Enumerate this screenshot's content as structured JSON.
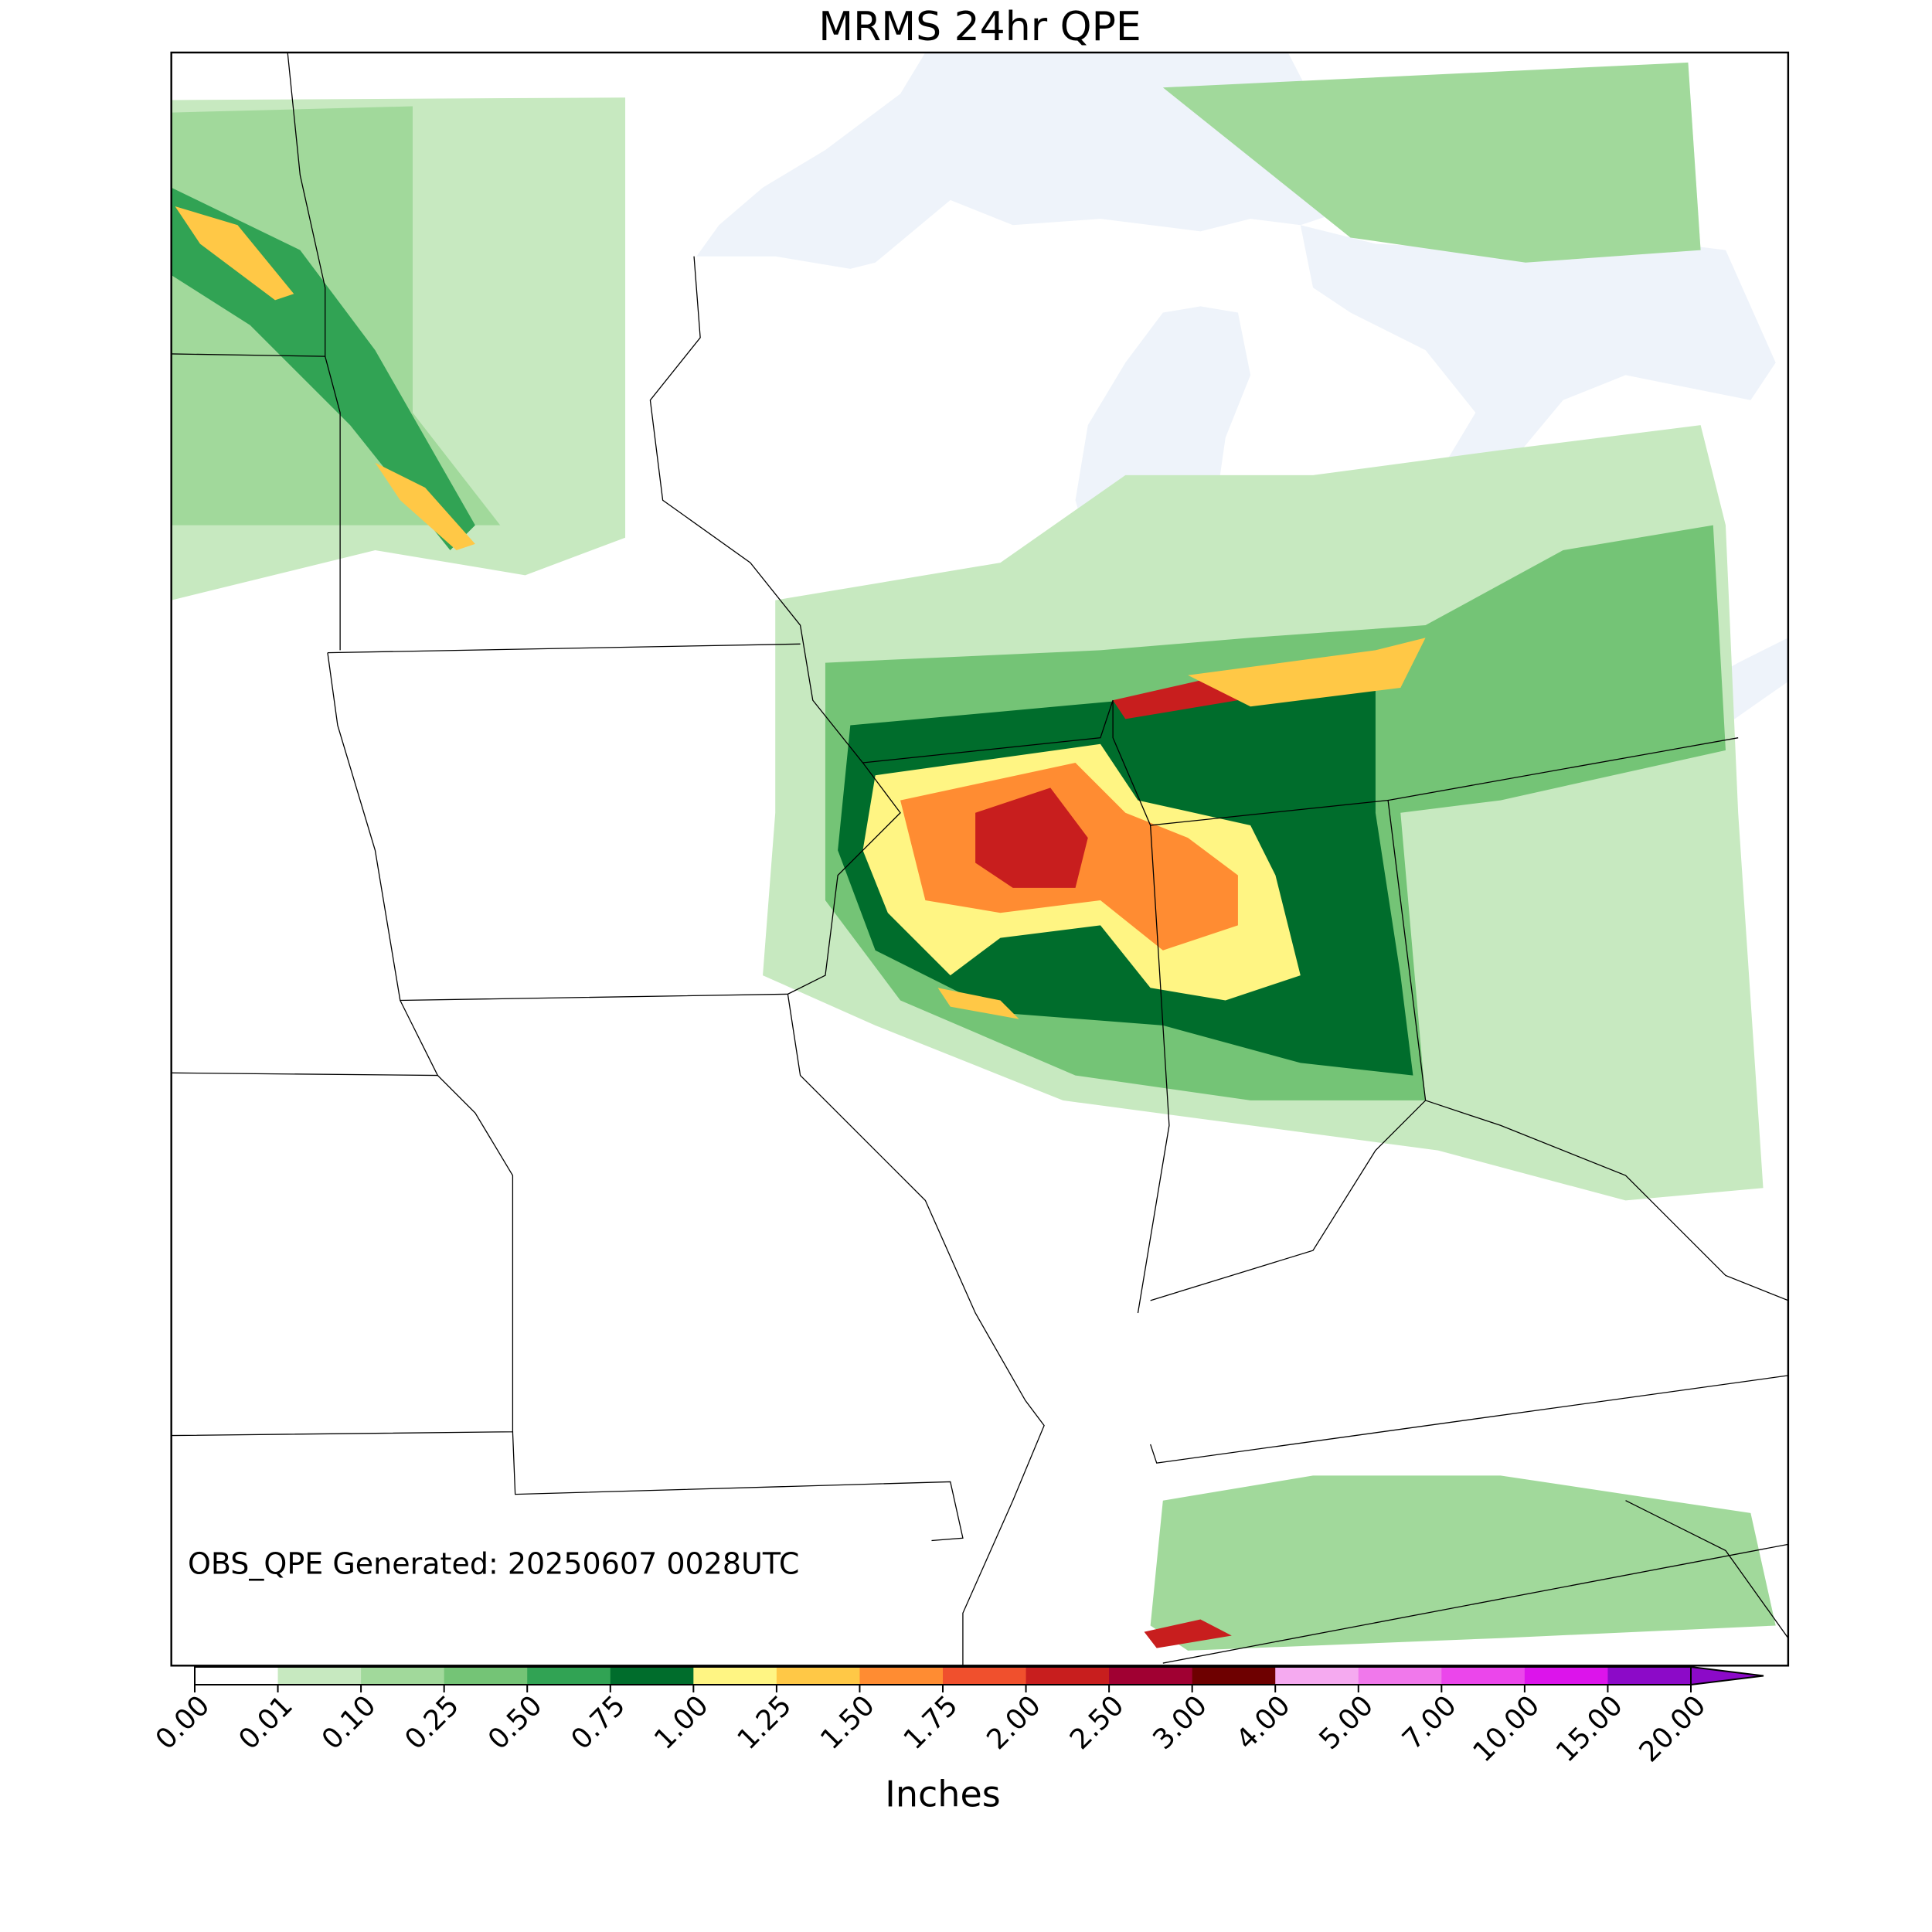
{
  "title": "MRMS 24hr QPE",
  "annotation": "OBS_QPE Generated: 20250607 0028UTC",
  "colorbar": {
    "label": "Inches",
    "ticks": [
      {
        "value": 0,
        "label": "0.00"
      },
      {
        "value": 0.01,
        "label": "0.01"
      },
      {
        "value": 0.1,
        "label": "0.10"
      },
      {
        "value": 0.25,
        "label": "0.25"
      },
      {
        "value": 0.5,
        "label": "0.50"
      },
      {
        "value": 0.75,
        "label": "0.75"
      },
      {
        "value": 1,
        "label": "1.00"
      },
      {
        "value": 1.25,
        "label": "1.25"
      },
      {
        "value": 1.5,
        "label": "1.50"
      },
      {
        "value": 1.75,
        "label": "1.75"
      },
      {
        "value": 2,
        "label": "2.00"
      },
      {
        "value": 2.5,
        "label": "2.50"
      },
      {
        "value": 3,
        "label": "3.00"
      },
      {
        "value": 4,
        "label": "4.00"
      },
      {
        "value": 5,
        "label": "5.00"
      },
      {
        "value": 7,
        "label": "7.00"
      },
      {
        "value": 10,
        "label": "10.00"
      },
      {
        "value": 15,
        "label": "15.00"
      },
      {
        "value": 20,
        "label": "20.00"
      }
    ],
    "colors": [
      "#ffffff",
      "#c7e9c0",
      "#a1d99b",
      "#74c476",
      "#31a354",
      "#006d2c",
      "#fff583",
      "#ffc846",
      "#ff8c32",
      "#f0502d",
      "#c81e1e",
      "#a00032",
      "#6e0000",
      "#f5aaf0",
      "#f078eb",
      "#eb46eb",
      "#dc14eb",
      "#8c0ac8"
    ],
    "extend_color": "#8c0ac8"
  }
}
